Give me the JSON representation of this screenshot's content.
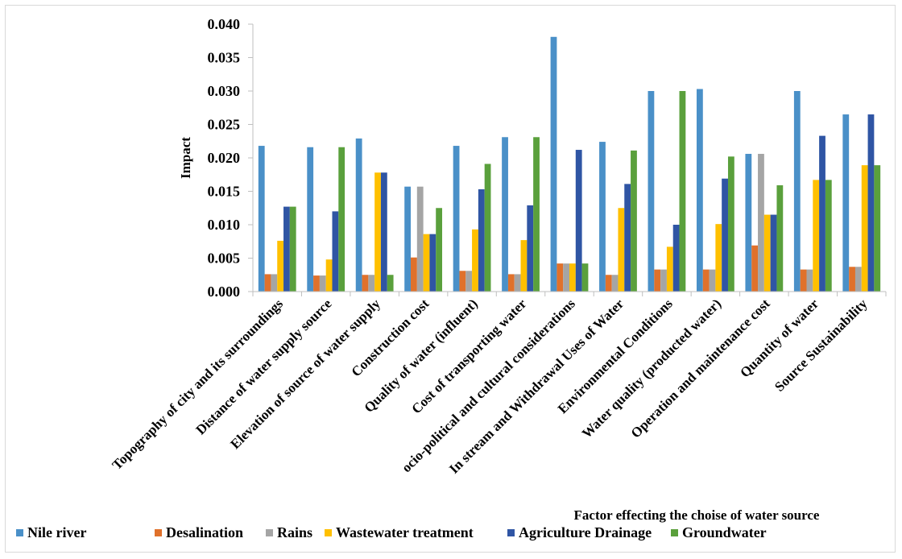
{
  "chart_data": {
    "type": "bar",
    "title": "",
    "xlabel": "Factor effecting the choise of water source",
    "ylabel": "Impact",
    "ylim": [
      0,
      0.04
    ],
    "yticks": [
      "0.000",
      "0.005",
      "0.010",
      "0.015",
      "0.020",
      "0.025",
      "0.030",
      "0.035",
      "0.040"
    ],
    "grid": false,
    "legend_position": "bottom",
    "categories": [
      "Topography of city and its surroundings",
      "Distance of water supply source",
      "Elevation of source of water supply",
      "Construction cost",
      "Quality of water (influent)",
      "Cost of transporting water",
      "ocio-political and cultural considerations",
      "In stream and Withdrawal Uses of Water",
      "Environmental Conditions",
      "Water quality (producted water)",
      "Operation and maintenance cost",
      "Quantity of water",
      "Source Sustainability"
    ],
    "series": [
      {
        "name": "Nile river",
        "color": "#4a90c8",
        "values": [
          0.0218,
          0.0216,
          0.0229,
          0.0157,
          0.0218,
          0.0231,
          0.0381,
          0.0224,
          0.03,
          0.0303,
          0.0206,
          0.03,
          0.0265
        ]
      },
      {
        "name": "Desalination",
        "color": "#e0712b",
        "values": [
          0.0026,
          0.0024,
          0.0025,
          0.0051,
          0.0031,
          0.0026,
          0.0042,
          0.0025,
          0.0033,
          0.0033,
          0.0069,
          0.0033,
          0.0037
        ]
      },
      {
        "name": "Rains",
        "color": "#a5a5a5",
        "values": [
          0.0026,
          0.0024,
          0.0025,
          0.0157,
          0.0031,
          0.0026,
          0.0042,
          0.0025,
          0.0033,
          0.0033,
          0.0206,
          0.0033,
          0.0037
        ]
      },
      {
        "name": "Wastewater treatment",
        "color": "#ffc000",
        "values": [
          0.0076,
          0.0048,
          0.0178,
          0.0086,
          0.0093,
          0.0077,
          0.0042,
          0.0125,
          0.0067,
          0.0101,
          0.0115,
          0.0167,
          0.0189
        ]
      },
      {
        "name": "Agriculture Drainage",
        "color": "#2f55a4",
        "values": [
          0.0127,
          0.012,
          0.0178,
          0.0086,
          0.0153,
          0.0129,
          0.0212,
          0.0161,
          0.01,
          0.0169,
          0.0115,
          0.0233,
          0.0265
        ]
      },
      {
        "name": "Groundwater",
        "color": "#5aa03c",
        "values": [
          0.0127,
          0.0216,
          0.0025,
          0.0125,
          0.0191,
          0.0231,
          0.0042,
          0.0211,
          0.03,
          0.0202,
          0.0159,
          0.0167,
          0.0189
        ]
      }
    ]
  }
}
